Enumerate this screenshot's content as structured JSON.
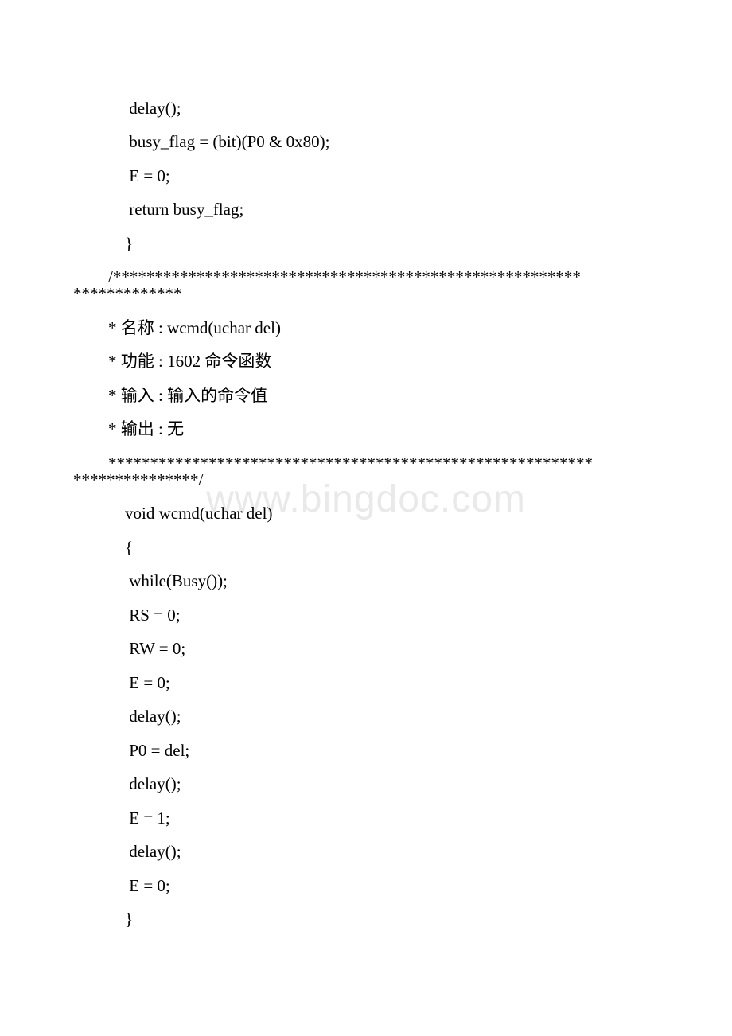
{
  "watermark": "www.bingdoc.com",
  "lines": [
    {
      "cls": "indent-code",
      "text": " delay();"
    },
    {
      "cls": "indent-code",
      "text": " busy_flag = (bit)(P0 & 0x80);"
    },
    {
      "cls": "indent-code",
      "text": " E = 0;"
    },
    {
      "cls": "indent-code",
      "text": " return busy_flag;"
    },
    {
      "cls": "indent-code",
      "text": "}"
    },
    {
      "cls": "indent-wrap1",
      "text": "/********************************************************"
    },
    {
      "cls": "indent-wrap0",
      "text": "*************",
      "tight": true
    },
    {
      "cls": "indent-wrap1",
      "text": "* 名称 : wcmd(uchar del)"
    },
    {
      "cls": "indent-wrap1",
      "text": "* 功能 : 1602 命令函数"
    },
    {
      "cls": "indent-wrap1",
      "text": "* 输入 : 输入的命令值"
    },
    {
      "cls": "indent-wrap1",
      "text": "* 输出 : 无"
    },
    {
      "cls": "indent-wrap1",
      "text": "**********************************************************"
    },
    {
      "cls": "indent-wrap0",
      "text": "***************/",
      "tight": true
    },
    {
      "cls": "indent-code",
      "text": "void wcmd(uchar del)"
    },
    {
      "cls": "indent-code",
      "text": "{"
    },
    {
      "cls": "indent-code",
      "text": " while(Busy());"
    },
    {
      "cls": "indent-code",
      "text": " RS = 0;"
    },
    {
      "cls": "indent-code",
      "text": " RW = 0;"
    },
    {
      "cls": "indent-code",
      "text": " E = 0;"
    },
    {
      "cls": "indent-code",
      "text": " delay();"
    },
    {
      "cls": "indent-code",
      "text": " P0 = del;"
    },
    {
      "cls": "indent-code",
      "text": " delay();"
    },
    {
      "cls": "indent-code",
      "text": " E = 1;"
    },
    {
      "cls": "indent-code",
      "text": " delay();"
    },
    {
      "cls": "indent-code",
      "text": " E = 0;"
    },
    {
      "cls": "indent-code",
      "text": "}"
    }
  ]
}
